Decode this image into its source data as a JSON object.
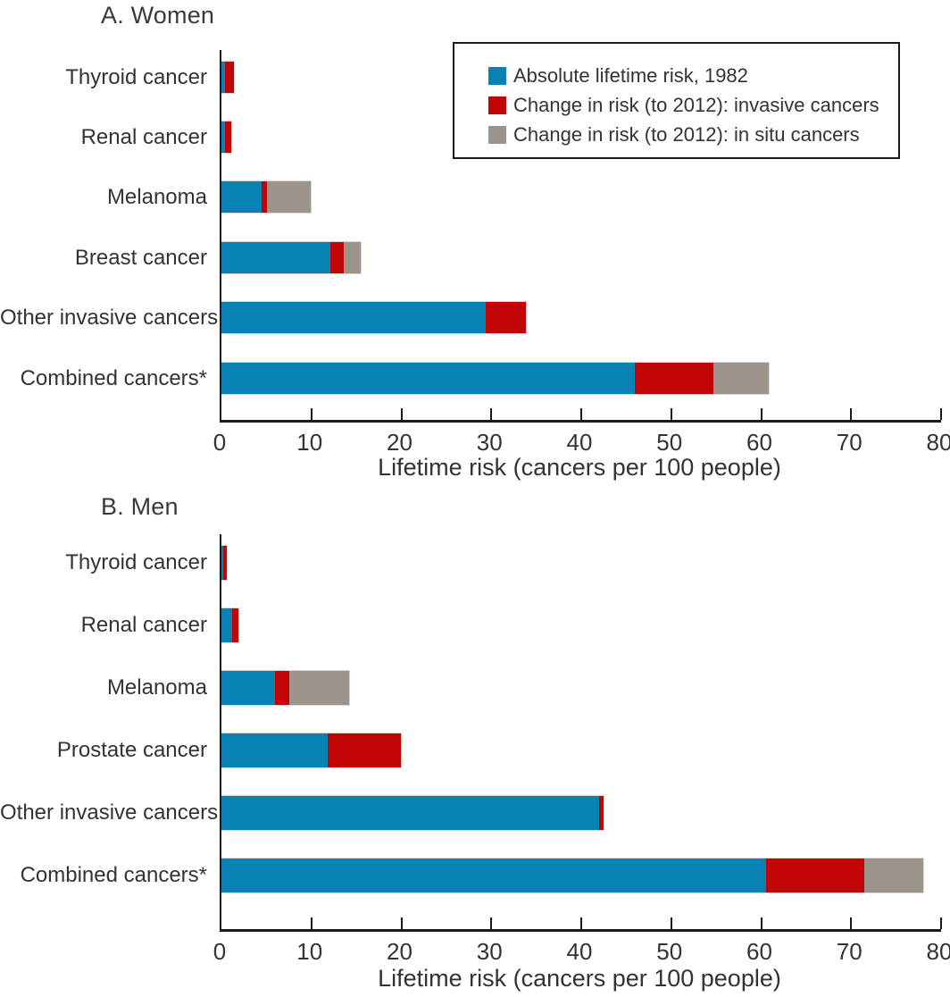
{
  "figure": {
    "background": "#ffffff",
    "text_color": "#333333",
    "axis_color": "#1a1a1a"
  },
  "legend": {
    "items": [
      {
        "name": "absolute-lifetime-risk-1982",
        "label": "Absolute lifetime risk, 1982",
        "color": "#0a81b5"
      },
      {
        "name": "change-invasive-cancers",
        "label": "Change in risk (to 2012): invasive cancers",
        "color": "#c00507"
      },
      {
        "name": "change-in-situ-cancers",
        "label": "Change in risk (to 2012): in situ cancers",
        "color": "#9c938b"
      }
    ]
  },
  "chart_data": [
    {
      "type": "bar",
      "orientation": "horizontal",
      "title": "A. Women",
      "xlabel": "Lifetime risk (cancers per 100 people)",
      "xlim": [
        0,
        80
      ],
      "xticks": [
        0,
        10,
        20,
        30,
        40,
        50,
        60,
        70,
        80
      ],
      "grid": false,
      "categories": [
        "Thyroid cancer",
        "Renal cancer",
        "Melanoma",
        "Breast cancer",
        "Other invasive cancers",
        "Combined cancers*"
      ],
      "series": [
        {
          "name": "Absolute lifetime risk, 1982",
          "color": "#0a81b5",
          "values": [
            0.4,
            0.4,
            4.5,
            12.1,
            29.4,
            46.0
          ]
        },
        {
          "name": "Change in risk (to 2012): invasive cancers",
          "color": "#c00507",
          "values": [
            1.0,
            0.7,
            0.6,
            1.5,
            4.4,
            8.7
          ]
        },
        {
          "name": "Change in risk (to 2012): in situ cancers",
          "color": "#9c938b",
          "values": [
            0,
            0,
            4.8,
            1.9,
            0,
            6.1
          ]
        }
      ]
    },
    {
      "type": "bar",
      "orientation": "horizontal",
      "title": "B. Men",
      "xlabel": "Lifetime risk (cancers per 100 people)",
      "xlim": [
        0,
        80
      ],
      "xticks": [
        0,
        10,
        20,
        30,
        40,
        50,
        60,
        70,
        80
      ],
      "grid": false,
      "categories": [
        "Thyroid cancer",
        "Renal cancer",
        "Melanoma",
        "Prostate cancer",
        "Other invasive cancers",
        "Combined cancers*"
      ],
      "series": [
        {
          "name": "Absolute lifetime risk, 1982",
          "color": "#0a81b5",
          "values": [
            0.2,
            1.2,
            6.0,
            11.8,
            42.0,
            60.5
          ]
        },
        {
          "name": "Change in risk (to 2012): invasive cancers",
          "color": "#c00507",
          "values": [
            0.4,
            0.7,
            1.5,
            8.2,
            0.5,
            11.0
          ]
        },
        {
          "name": "Change in risk (to 2012): in situ cancers",
          "color": "#9c938b",
          "values": [
            0,
            0,
            6.7,
            0,
            0,
            6.5
          ]
        }
      ]
    }
  ]
}
